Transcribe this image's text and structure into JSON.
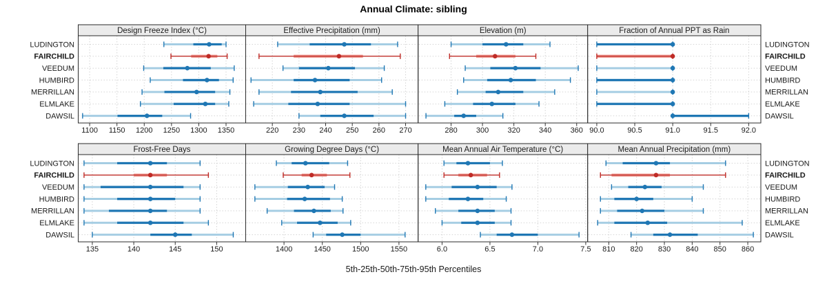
{
  "title": "Annual Climate: sibling",
  "footer": "5th-25th-50th-75th-95th Percentiles",
  "stations": [
    "LUDINGTON",
    "FAIRCHILD",
    "VEEDUM",
    "HUMBIRD",
    "MERRILLAN",
    "ELMLAKE",
    "DAWSIL"
  ],
  "highlight_station": "FAIRCHILD",
  "colors": {
    "series_blue": "#1f77b4",
    "series_blue_light": "#a5cde3",
    "highlight_red": "#bf2b26",
    "highlight_red_light": "#f09c94",
    "grid": "#d4d4d4",
    "panel_header_bg": "#ebebeb",
    "panel_border": "#2a2a2a",
    "tick": "#333333"
  },
  "chart_data": {
    "type": "interval-dotplot",
    "percentile_levels": [
      5,
      25,
      50,
      75,
      95
    ],
    "categories": [
      "LUDINGTON",
      "FAIRCHILD",
      "VEEDUM",
      "HUMBIRD",
      "MERRILLAN",
      "ELMLAKE",
      "DAWSIL"
    ],
    "legend_position": "none",
    "grid": "dotted",
    "panels": [
      {
        "title": "Design Freeze Index (°C)",
        "xlim": [
          1079,
          1386
        ],
        "ticks": [
          1100,
          1150,
          1200,
          1250,
          1300,
          1350
        ],
        "tick_labels": [
          "1100",
          "1150",
          "1200",
          "1250",
          "1300",
          "1350"
        ],
        "series": [
          [
            1236,
            1290,
            1319,
            1342,
            1350
          ],
          [
            1249,
            1286,
            1318,
            1334,
            1352
          ],
          [
            1199,
            1235,
            1279,
            1322,
            1365
          ],
          [
            1211,
            1271,
            1315,
            1337,
            1363
          ],
          [
            1196,
            1237,
            1296,
            1330,
            1357
          ],
          [
            1193,
            1254,
            1312,
            1330,
            1355
          ],
          [
            1087,
            1151,
            1205,
            1233,
            1285
          ]
        ]
      },
      {
        "title": "Effective Precipitation (mm)",
        "xlim": [
          210,
          274.7
        ],
        "ticks": [
          220,
          230,
          240,
          250,
          260,
          270
        ],
        "tick_labels": [
          "220",
          "230",
          "240",
          "250",
          "260",
          "270"
        ],
        "series": [
          [
            222,
            234,
            247,
            257,
            267
          ],
          [
            215,
            228,
            245,
            254,
            268
          ],
          [
            224,
            230,
            241,
            251,
            262
          ],
          [
            212,
            228,
            236,
            249,
            261
          ],
          [
            215,
            227,
            238,
            252,
            265
          ],
          [
            213,
            226,
            237,
            249,
            270
          ],
          [
            230,
            238,
            247,
            258,
            270
          ]
        ]
      },
      {
        "title": "Elevation (m)",
        "xlim": [
          259,
          367
        ],
        "ticks": [
          280,
          300,
          320,
          340,
          360
        ],
        "tick_labels": [
          "280",
          "300",
          "320",
          "340",
          "360"
        ],
        "series": [
          [
            280,
            300,
            315,
            326,
            343
          ],
          [
            279,
            296,
            308,
            321,
            334
          ],
          [
            289,
            305,
            321,
            337,
            361
          ],
          [
            288,
            303,
            318,
            334,
            356
          ],
          [
            284,
            302,
            310,
            326,
            346
          ],
          [
            276,
            294,
            306,
            321,
            336
          ],
          [
            264,
            282,
            288,
            296,
            313
          ]
        ]
      },
      {
        "title": "Fraction of Annual PPT as Rain",
        "xlim": [
          89.88,
          92.16
        ],
        "ticks": [
          90.0,
          90.5,
          91.0,
          91.5,
          92.0
        ],
        "tick_labels": [
          "90.0",
          "90.5",
          "91.0",
          "91.5",
          "92.0"
        ],
        "series": [
          [
            90,
            90,
            91,
            91,
            91
          ],
          [
            90,
            90,
            91,
            91,
            91
          ],
          [
            90,
            91,
            91,
            91,
            91
          ],
          [
            90,
            90,
            91,
            91,
            91
          ],
          [
            90,
            91,
            91,
            91,
            91
          ],
          [
            90,
            90,
            91,
            91,
            91
          ],
          [
            91,
            91,
            91,
            92,
            92
          ]
        ]
      },
      {
        "title": "Frost-Free Days",
        "xlim": [
          133.3,
          153.5
        ],
        "ticks": [
          135,
          140,
          145,
          150
        ],
        "tick_labels": [
          "135",
          "140",
          "145",
          "150"
        ],
        "series": [
          [
            134,
            138,
            142,
            144,
            148
          ],
          [
            134,
            140,
            142,
            144,
            149
          ],
          [
            134,
            136,
            142,
            146,
            148
          ],
          [
            134,
            138,
            142,
            145,
            148
          ],
          [
            134,
            137,
            142,
            144,
            148
          ],
          [
            134,
            138,
            142,
            146,
            149
          ],
          [
            135,
            142,
            145,
            147,
            152
          ]
        ]
      },
      {
        "title": "Growing Degree Days (°C)",
        "xlim": [
          1350,
          1575
        ],
        "ticks": [
          1400,
          1450,
          1500,
          1550
        ],
        "tick_labels": [
          "1400",
          "1450",
          "1500",
          "1550"
        ],
        "series": [
          [
            1390,
            1410,
            1428,
            1459,
            1483
          ],
          [
            1399,
            1423,
            1436,
            1456,
            1486
          ],
          [
            1362,
            1405,
            1431,
            1453,
            1466
          ],
          [
            1362,
            1404,
            1427,
            1460,
            1476
          ],
          [
            1378,
            1413,
            1439,
            1461,
            1477
          ],
          [
            1397,
            1417,
            1447,
            1470,
            1487
          ],
          [
            1438,
            1455,
            1476,
            1500,
            1558
          ]
        ]
      },
      {
        "title": "Mean Annual Air Temperature (°C)",
        "xlim": [
          5.75,
          7.52
        ],
        "ticks": [
          6.0,
          6.5,
          7.0,
          7.5
        ],
        "tick_labels": [
          "6.0",
          "6.5",
          "7.0",
          "7.5"
        ],
        "series": [
          [
            6.02,
            6.15,
            6.27,
            6.5,
            6.63
          ],
          [
            6.02,
            6.17,
            6.3,
            6.47,
            6.6
          ],
          [
            5.83,
            6.1,
            6.37,
            6.57,
            6.73
          ],
          [
            5.83,
            6.07,
            6.27,
            6.43,
            6.67
          ],
          [
            5.93,
            6.17,
            6.37,
            6.55,
            6.72
          ],
          [
            6.0,
            6.2,
            6.37,
            6.55,
            6.72
          ],
          [
            6.4,
            6.57,
            6.73,
            7.0,
            7.43
          ]
        ]
      },
      {
        "title": "Mean Annual Precipitation (mm)",
        "xlim": [
          802.4,
          864.7
        ],
        "ticks": [
          810,
          820,
          830,
          840,
          850,
          860
        ],
        "tick_labels": [
          "810",
          "820",
          "830",
          "840",
          "850",
          "860"
        ],
        "series": [
          [
            809,
            815,
            827,
            832,
            852
          ],
          [
            807,
            811,
            827,
            832,
            852
          ],
          [
            811,
            817,
            823,
            829,
            844
          ],
          [
            807,
            812,
            820,
            826,
            840
          ],
          [
            807,
            813,
            822,
            830,
            844
          ],
          [
            806,
            812,
            824,
            831,
            858
          ],
          [
            818,
            826,
            832,
            842,
            862
          ]
        ]
      }
    ]
  }
}
